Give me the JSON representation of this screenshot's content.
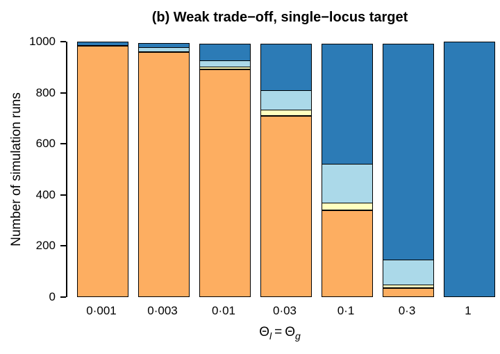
{
  "chart_data": {
    "type": "bar",
    "stacked": true,
    "title": "(b) Weak trade−off, single−locus target",
    "ylabel": "Number of simulation runs",
    "xlabel": {
      "text": "Θl = Θg",
      "theta_base_1": "Θ",
      "theta_sub_1": "l",
      "equals": "=",
      "theta_base_2": "Θ",
      "theta_sub_2": "g"
    },
    "categories": [
      "0·001",
      "0·003",
      "0·01",
      "0·03",
      "0·1",
      "0·3",
      "1"
    ],
    "series": [
      {
        "name": "orange-segment",
        "color": "#FDAE61",
        "values": [
          985,
          960,
          890,
          710,
          340,
          35,
          0
        ]
      },
      {
        "name": "pale-yellow-segment",
        "color": "#FFFFBF",
        "values": [
          0,
          0,
          12,
          25,
          30,
          15,
          0
        ]
      },
      {
        "name": "light-blue-segment",
        "color": "#ABD9E9",
        "values": [
          0,
          18,
          30,
          80,
          155,
          100,
          0
        ]
      },
      {
        "name": "dark-blue-segment",
        "color": "#2C7BB6",
        "values": [
          15,
          22,
          68,
          185,
          475,
          850,
          1000
        ]
      }
    ],
    "ylim": [
      0,
      1000
    ],
    "yticks": [
      0,
      200,
      400,
      600,
      800,
      1000
    ],
    "legend": "none",
    "grid": false,
    "bar_border_color": "#000000",
    "axis_color": "#000000",
    "background": "#FFFFFF"
  }
}
